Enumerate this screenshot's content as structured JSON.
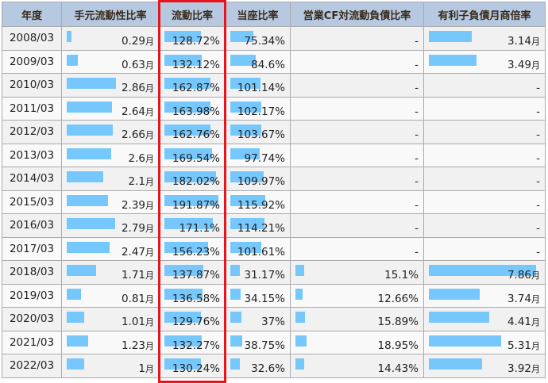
{
  "headers": [
    "年度",
    "手元流動性比率",
    "流動比率",
    "当座比率",
    "営業CF対流動負債比率",
    "有利子負債月商倍率"
  ],
  "highlighted_column": "流動比率",
  "bar_color": "#76c8fc",
  "highlight_color": "#e8141e",
  "rows": [
    {
      "year": "2008/03",
      "cash": "0.29",
      "current": "128.72%",
      "quick": "75.34%",
      "cf": "-",
      "debt": "3.14"
    },
    {
      "year": "2009/03",
      "cash": "0.63",
      "current": "132.12%",
      "quick": "84.6%",
      "cf": "-",
      "debt": "3.49"
    },
    {
      "year": "2010/03",
      "cash": "2.86",
      "current": "162.87%",
      "quick": "101.14%",
      "cf": "-",
      "debt": "-"
    },
    {
      "year": "2011/03",
      "cash": "2.64",
      "current": "163.98%",
      "quick": "102.17%",
      "cf": "-",
      "debt": "-"
    },
    {
      "year": "2012/03",
      "cash": "2.66",
      "current": "162.76%",
      "quick": "103.67%",
      "cf": "-",
      "debt": "-"
    },
    {
      "year": "2013/03",
      "cash": "2.6",
      "current": "169.54%",
      "quick": "97.74%",
      "cf": "-",
      "debt": "-"
    },
    {
      "year": "2014/03",
      "cash": "2.1",
      "current": "182.02%",
      "quick": "109.97%",
      "cf": "-",
      "debt": "-"
    },
    {
      "year": "2015/03",
      "cash": "2.39",
      "current": "191.87%",
      "quick": "115.92%",
      "cf": "-",
      "debt": "-"
    },
    {
      "year": "2016/03",
      "cash": "2.79",
      "current": "171.1%",
      "quick": "114.21%",
      "cf": "-",
      "debt": "-"
    },
    {
      "year": "2017/03",
      "cash": "2.47",
      "current": "156.23%",
      "quick": "101.61%",
      "cf": "-",
      "debt": "-"
    },
    {
      "year": "2018/03",
      "cash": "1.71",
      "current": "137.87%",
      "quick": "31.17%",
      "cf": "15.1%",
      "debt": "7.86"
    },
    {
      "year": "2019/03",
      "cash": "0.81",
      "current": "136.58%",
      "quick": "34.15%",
      "cf": "12.66%",
      "debt": "3.74"
    },
    {
      "year": "2020/03",
      "cash": "1.01",
      "current": "129.76%",
      "quick": "37%",
      "cf": "15.89%",
      "debt": "4.41"
    },
    {
      "year": "2021/03",
      "cash": "1.23",
      "current": "132.27%",
      "quick": "38.75%",
      "cf": "18.95%",
      "debt": "5.31"
    },
    {
      "year": "2022/03",
      "cash": "1",
      "current": "130.24%",
      "quick": "32.6%",
      "cf": "14.43%",
      "debt": "3.92"
    }
  ],
  "month_unit": "月"
}
